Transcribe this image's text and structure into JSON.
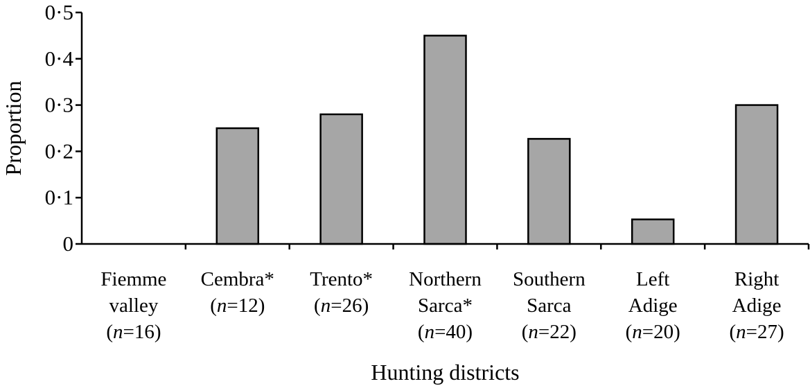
{
  "chart_data": {
    "type": "bar",
    "title": "",
    "xlabel": "Hunting districts",
    "ylabel": "Proportion",
    "ylim": [
      0,
      0.5
    ],
    "yticks": [
      0,
      0.1,
      0.2,
      0.3,
      0.4,
      0.5
    ],
    "ytick_labels": [
      "0",
      "0·1",
      "0·2",
      "0·3",
      "0·4",
      "0·5"
    ],
    "grid": false,
    "legend": "none",
    "categories": [
      {
        "lines": [
          "Fiemme",
          "valley",
          "(n=16)"
        ],
        "value": 0.0
      },
      {
        "lines": [
          "Cembra*",
          "(n=12)"
        ],
        "value": 0.25
      },
      {
        "lines": [
          "Trento*",
          "(n=26)"
        ],
        "value": 0.28
      },
      {
        "lines": [
          "Northern",
          "Sarca*",
          "(n=40)"
        ],
        "value": 0.45
      },
      {
        "lines": [
          "Southern",
          "Sarca",
          "(n=22)"
        ],
        "value": 0.227
      },
      {
        "lines": [
          "Left",
          "Adige",
          "(n=20)"
        ],
        "value": 0.053
      },
      {
        "lines": [
          "Right",
          "Adige",
          "(n=27)"
        ],
        "value": 0.3
      }
    ],
    "colors": {
      "bar_fill": "#a6a6a6",
      "bar_stroke": "#000000",
      "axis": "#000000"
    }
  }
}
